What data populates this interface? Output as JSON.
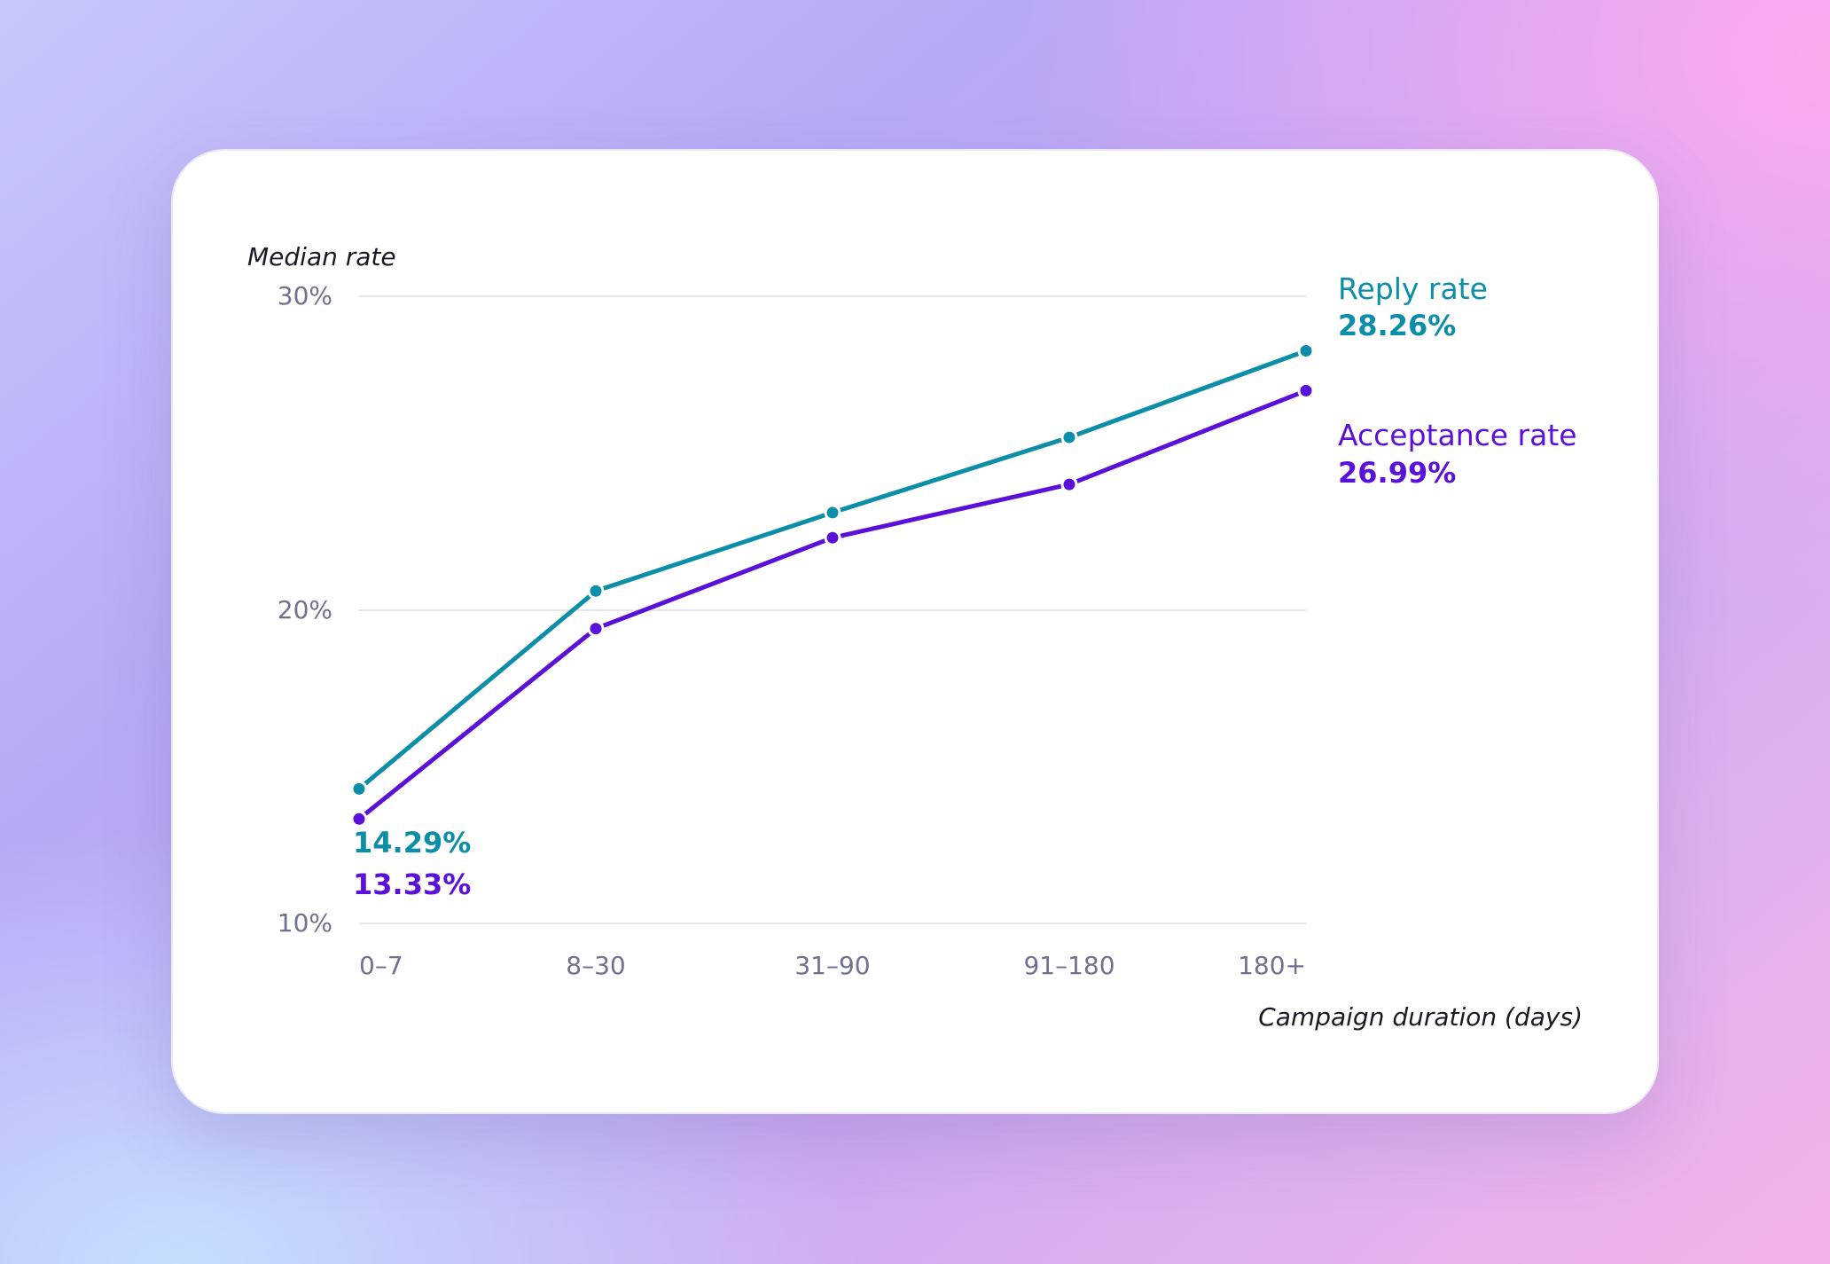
{
  "colors": {
    "reply": "#0d8ea8",
    "acceptance": "#5a10d8",
    "grid": "#e6e6ec"
  },
  "chart_data": {
    "type": "line",
    "ylabel": "Median rate",
    "xlabel": "Campaign duration (days)",
    "categories": [
      "0–7",
      "8–30",
      "31–90",
      "91–180",
      "180+"
    ],
    "y_ticks": [
      "30%",
      "20%",
      "10%"
    ],
    "ylim": [
      10,
      30
    ],
    "grid": "horizontal",
    "series": [
      {
        "name": "Reply rate",
        "values": [
          14.29,
          20.6,
          23.1,
          25.5,
          28.26
        ],
        "start_label": "14.29%",
        "end_label": "28.26%"
      },
      {
        "name": "Acceptance rate",
        "values": [
          13.33,
          19.4,
          22.3,
          24.0,
          26.99
        ],
        "start_label": "13.33%",
        "end_label": "26.99%"
      }
    ]
  }
}
